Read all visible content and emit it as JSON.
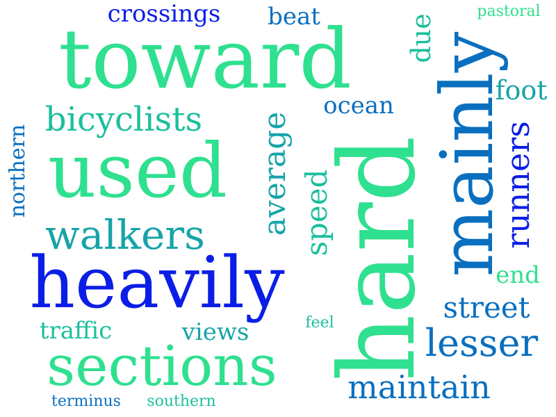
{
  "colors": {
    "background": "#ffffff",
    "aqua_green": "#2ee08f",
    "teal": "#1bbf9c",
    "sea": "#16a4a8",
    "blue": "#0a6fbf",
    "deep_blue": "#0b1ee6"
  },
  "words": {
    "toward": "toward",
    "mainly": "mainly",
    "hard": "hard",
    "heavily": "heavily",
    "used": "used",
    "sections": "sections",
    "walkers": "walkers",
    "bicyclists": "bicyclists",
    "lesser": "lesser",
    "maintain": "maintain",
    "street": "street",
    "runners": "runners",
    "average": "average",
    "speed": "speed",
    "crossings": "crossings",
    "beat": "beat",
    "due": "due",
    "pastoral": "pastoral",
    "foot": "foot",
    "ocean": "ocean",
    "northern": "northern",
    "end": "end",
    "traffic": "traffic",
    "views": "views",
    "feel": "feel",
    "terminus": "terminus",
    "southern": "southern"
  }
}
